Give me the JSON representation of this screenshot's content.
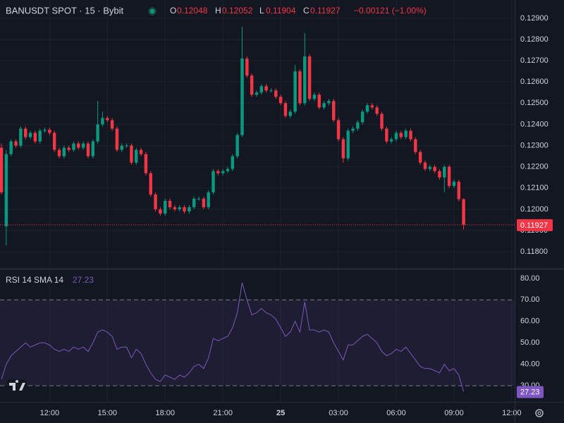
{
  "chart_data": [
    {
      "type": "candlestick",
      "title": "BANUSDT SPOT · 15 · Bybit",
      "ohlc_labels": [
        "O",
        "H",
        "L",
        "C"
      ],
      "change": "−0.00121 (−1.00%)",
      "up_color": "#089981",
      "down_color": "#f23645",
      "xlim": [
        -0.3,
        106.6
      ],
      "xticks": [
        {
          "value": 10,
          "label": "12:00"
        },
        {
          "value": 22,
          "label": "15:00"
        },
        {
          "value": 34,
          "label": "18:00"
        },
        {
          "value": 46,
          "label": "21:00"
        },
        {
          "value": 58,
          "label": "25"
        },
        {
          "value": 70,
          "label": "03:00"
        },
        {
          "value": 82,
          "label": "06:00"
        },
        {
          "value": 94,
          "label": "09:00"
        },
        {
          "value": 106,
          "label": "12:00"
        }
      ],
      "ylim": [
        0.11724,
        0.12986
      ],
      "yticks": [
        {
          "value": 0.118,
          "label": "0.11800"
        },
        {
          "value": 0.119,
          "label": "0.11900"
        },
        {
          "value": 0.12,
          "label": "0.12000"
        },
        {
          "value": 0.121,
          "label": "0.12100"
        },
        {
          "value": 0.122,
          "label": "0.12200"
        },
        {
          "value": 0.123,
          "label": "0.12300"
        },
        {
          "value": 0.124,
          "label": "0.12400"
        },
        {
          "value": 0.125,
          "label": "0.12500"
        },
        {
          "value": 0.126,
          "label": "0.12600"
        },
        {
          "value": 0.127,
          "label": "0.12700"
        },
        {
          "value": 0.128,
          "label": "0.12800"
        },
        {
          "value": 0.129,
          "label": "0.12900"
        }
      ],
      "grid": true,
      "open": [
        0.1229,
        0.1192,
        0.1226,
        0.1232,
        0.123,
        0.1238,
        0.1234,
        0.1236,
        0.1232,
        0.1237,
        0.12375,
        0.1236,
        0.1228,
        0.1225,
        0.1229,
        0.1228,
        0.1231,
        0.1229,
        0.1231,
        0.1225,
        0.1232,
        0.124,
        0.1243,
        0.1242,
        0.1238,
        0.1228,
        0.123,
        0.123,
        0.1222,
        0.1228,
        0.1226,
        0.1217,
        0.1207,
        0.12,
        0.1198,
        0.1204,
        0.1201,
        0.12,
        0.1201,
        0.1199,
        0.1201,
        0.1205,
        0.1205,
        0.1201,
        0.1208,
        0.1218,
        0.1217,
        0.1218,
        0.1219,
        0.1225,
        0.1235,
        0.1271,
        0.1263,
        0.1254,
        0.1255,
        0.1258,
        0.1256,
        0.1256,
        0.1253,
        0.125,
        0.1244,
        0.1246,
        0.1265,
        0.125,
        0.1272,
        0.1252,
        0.1254,
        0.1248,
        0.125,
        0.1251,
        0.1242,
        0.1233,
        0.1224,
        0.1237,
        0.1238,
        0.1241,
        0.1246,
        0.1249,
        0.1248,
        0.1245,
        0.1238,
        0.1232,
        0.1233,
        0.1236,
        0.1234,
        0.1237,
        0.1233,
        0.1227,
        0.1222,
        0.1219,
        0.122,
        0.1218,
        0.1215,
        0.122,
        0.1211,
        0.1213,
        0.12048
      ],
      "high": [
        0.1231,
        0.1228,
        0.1233,
        0.1233,
        0.1239,
        0.1239,
        0.1237,
        0.1237,
        0.1238,
        0.12385,
        0.12385,
        0.1237,
        0.1229,
        0.123,
        0.123,
        0.1232,
        0.1232,
        0.1232,
        0.1232,
        0.1233,
        0.1251,
        0.1246,
        0.1244,
        0.1243,
        0.1239,
        0.1231,
        0.1231,
        0.1231,
        0.1229,
        0.1229,
        0.1227,
        0.1218,
        0.1208,
        0.1201,
        0.1205,
        0.1205,
        0.1202,
        0.1202,
        0.1202,
        0.1202,
        0.1206,
        0.1206,
        0.1206,
        0.1209,
        0.1219,
        0.1219,
        0.1219,
        0.122,
        0.1226,
        0.1236,
        0.1286,
        0.1272,
        0.1264,
        0.1256,
        0.1259,
        0.1259,
        0.1257,
        0.1257,
        0.1254,
        0.1251,
        0.1247,
        0.1268,
        0.1266,
        0.1283,
        0.1273,
        0.1255,
        0.1255,
        0.1251,
        0.1252,
        0.1252,
        0.1243,
        0.1234,
        0.1238,
        0.1239,
        0.1242,
        0.1247,
        0.125,
        0.125,
        0.1249,
        0.1246,
        0.1239,
        0.1234,
        0.1237,
        0.1237,
        0.1238,
        0.1238,
        0.1234,
        0.1228,
        0.1223,
        0.1221,
        0.1221,
        0.1219,
        0.1221,
        0.1221,
        0.1214,
        0.1214,
        0.12052
      ],
      "low": [
        0.1207,
        0.1183,
        0.1225,
        0.1229,
        0.1229,
        0.1233,
        0.1233,
        0.1231,
        0.1231,
        0.1236,
        0.1235,
        0.1227,
        0.1224,
        0.1224,
        0.1227,
        0.1227,
        0.1228,
        0.1228,
        0.1224,
        0.1224,
        0.1231,
        0.1239,
        0.1241,
        0.1237,
        0.1227,
        0.1227,
        0.1229,
        0.1221,
        0.1221,
        0.1225,
        0.1216,
        0.1206,
        0.1199,
        0.1197,
        0.1197,
        0.12,
        0.1199,
        0.1199,
        0.1198,
        0.1198,
        0.12,
        0.1204,
        0.12,
        0.12,
        0.1207,
        0.1216,
        0.1216,
        0.1217,
        0.1218,
        0.1224,
        0.1234,
        0.1262,
        0.1253,
        0.1253,
        0.1254,
        0.1255,
        0.1255,
        0.1252,
        0.1249,
        0.1243,
        0.1243,
        0.1245,
        0.1249,
        0.1249,
        0.1251,
        0.1251,
        0.1247,
        0.1247,
        0.1249,
        0.1241,
        0.1232,
        0.1222,
        0.1223,
        0.1236,
        0.1237,
        0.124,
        0.1245,
        0.1247,
        0.1244,
        0.1237,
        0.1231,
        0.1231,
        0.1232,
        0.1233,
        0.1233,
        0.1232,
        0.1226,
        0.1221,
        0.1218,
        0.1218,
        0.1217,
        0.1214,
        0.1208,
        0.121,
        0.121,
        0.12038,
        0.11904
      ],
      "close": [
        0.1208,
        0.1226,
        0.1232,
        0.123,
        0.1238,
        0.1234,
        0.1236,
        0.1232,
        0.1237,
        0.12375,
        0.1236,
        0.1228,
        0.1225,
        0.1229,
        0.1228,
        0.1231,
        0.1229,
        0.1231,
        0.1225,
        0.1232,
        0.124,
        0.1243,
        0.1242,
        0.1238,
        0.1228,
        0.123,
        0.123,
        0.1222,
        0.1228,
        0.1226,
        0.1217,
        0.1207,
        0.12,
        0.1198,
        0.1204,
        0.1201,
        0.12,
        0.1201,
        0.1199,
        0.1201,
        0.1205,
        0.1205,
        0.1201,
        0.1208,
        0.1218,
        0.1217,
        0.1218,
        0.1219,
        0.1225,
        0.1235,
        0.1271,
        0.1263,
        0.1254,
        0.1255,
        0.1258,
        0.1256,
        0.1256,
        0.1253,
        0.125,
        0.1244,
        0.1246,
        0.1265,
        0.125,
        0.1272,
        0.1252,
        0.1254,
        0.1248,
        0.125,
        0.1251,
        0.1242,
        0.1233,
        0.1224,
        0.1237,
        0.1238,
        0.1241,
        0.1246,
        0.1249,
        0.1248,
        0.1245,
        0.1238,
        0.1232,
        0.1233,
        0.1236,
        0.1234,
        0.1237,
        0.1233,
        0.1227,
        0.1222,
        0.1219,
        0.122,
        0.1218,
        0.1215,
        0.122,
        0.1211,
        0.1213,
        0.12048,
        0.11927
      ]
    },
    {
      "type": "line",
      "title": "RSI 14 SMA 14",
      "color": "#7e57c2",
      "ylim": [
        22.5,
        83.9
      ],
      "yticks": [
        {
          "value": 30,
          "label": "30.00"
        },
        {
          "value": 40,
          "label": "40.00"
        },
        {
          "value": 50,
          "label": "50.00"
        },
        {
          "value": 60,
          "label": "60.00"
        },
        {
          "value": 70,
          "label": "70.00"
        },
        {
          "value": 80,
          "label": "80.00"
        }
      ],
      "band": [
        30,
        70
      ],
      "values": [
        33,
        40,
        44,
        46,
        48,
        50,
        48,
        49,
        50,
        50,
        49,
        47,
        46,
        47,
        46,
        48,
        47,
        48,
        46,
        50,
        55,
        56,
        55,
        53,
        47,
        48,
        48,
        43,
        47,
        45,
        40,
        36,
        33,
        32,
        35,
        34,
        33,
        35,
        34,
        36,
        39,
        40,
        38,
        43,
        52,
        51,
        52,
        53,
        57,
        64,
        78,
        70,
        63,
        64,
        66,
        64,
        63,
        61,
        57,
        53,
        55,
        60,
        55,
        69,
        56,
        56,
        55,
        56,
        55,
        50,
        46,
        42,
        49,
        49,
        51,
        53,
        54,
        52,
        50,
        46,
        44,
        45,
        47,
        46,
        48,
        45,
        42,
        39,
        38,
        38,
        37,
        36,
        40,
        37,
        38,
        35,
        27.23
      ]
    }
  ]
}
